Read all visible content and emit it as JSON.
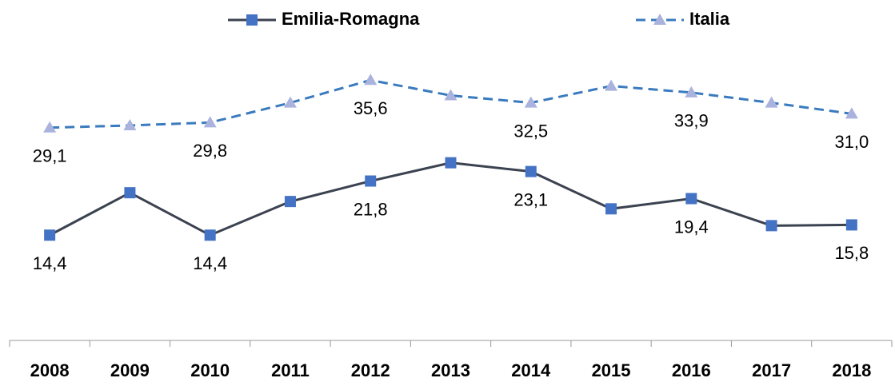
{
  "chart_data": {
    "type": "line",
    "categories": [
      "2008",
      "2009",
      "2010",
      "2011",
      "2012",
      "2013",
      "2014",
      "2015",
      "2016",
      "2017",
      "2018"
    ],
    "series": [
      {
        "name": "Emilia-Romagna",
        "color": "#3b4250",
        "marker_color": "#4472c4",
        "marker": "square",
        "dash": false,
        "values": [
          14.4,
          20.2,
          14.4,
          19.0,
          21.8,
          24.3,
          23.1,
          18.0,
          19.4,
          15.7,
          15.8
        ],
        "value_labels": [
          "14,4",
          null,
          "14,4",
          null,
          "21,8",
          null,
          "23,1",
          null,
          "19,4",
          null,
          "15,8"
        ]
      },
      {
        "name": "Italia",
        "color": "#3a7bbf",
        "marker_color": "#a9b3dd",
        "marker": "triangle",
        "dash": true,
        "values": [
          29.1,
          29.4,
          29.8,
          32.5,
          35.6,
          33.5,
          32.5,
          34.8,
          33.9,
          32.5,
          31.0
        ],
        "value_labels": [
          "29,1",
          null,
          "29,8",
          null,
          "35,6",
          null,
          "32,5",
          null,
          "33,9",
          null,
          "31,0"
        ]
      }
    ],
    "ylim": [
      0,
      40
    ],
    "legend": "top"
  }
}
